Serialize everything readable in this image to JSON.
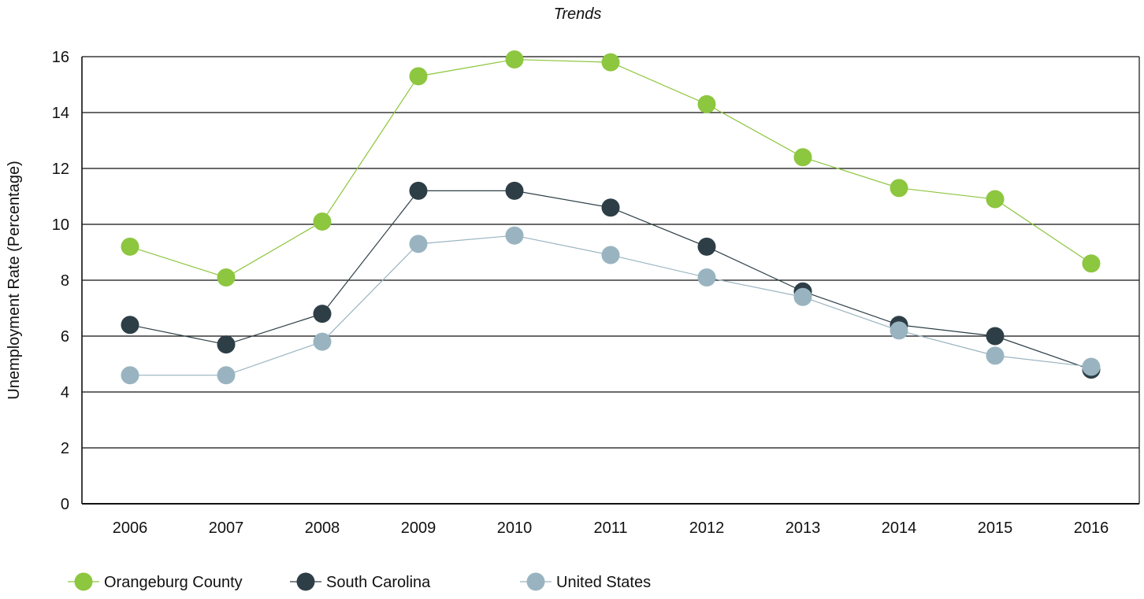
{
  "chart_data": {
    "type": "line",
    "title": "Trends",
    "xlabel": "",
    "ylabel": "Unemployment Rate (Percentage)",
    "categories": [
      "2006",
      "2007",
      "2008",
      "2009",
      "2010",
      "2011",
      "2012",
      "2013",
      "2014",
      "2015",
      "2016"
    ],
    "ylim": [
      0,
      16
    ],
    "yticks": [
      "0",
      "2",
      "4",
      "6",
      "8",
      "10",
      "12",
      "14",
      "16"
    ],
    "grid": true,
    "legend_position": "bottom-left",
    "series": [
      {
        "name": "Orangeburg County",
        "color": "#8dc63f",
        "values": [
          9.2,
          8.1,
          10.1,
          15.3,
          15.9,
          15.8,
          14.3,
          12.4,
          11.3,
          10.9,
          8.6
        ]
      },
      {
        "name": "South Carolina",
        "color": "#2d3e46",
        "values": [
          6.4,
          5.7,
          6.8,
          11.2,
          11.2,
          10.6,
          9.2,
          7.6,
          6.4,
          6.0,
          4.8
        ]
      },
      {
        "name": "United States",
        "color": "#99b4c0",
        "values": [
          4.6,
          4.6,
          5.8,
          9.3,
          9.6,
          8.9,
          8.1,
          7.4,
          6.2,
          5.3,
          4.9
        ]
      }
    ]
  }
}
